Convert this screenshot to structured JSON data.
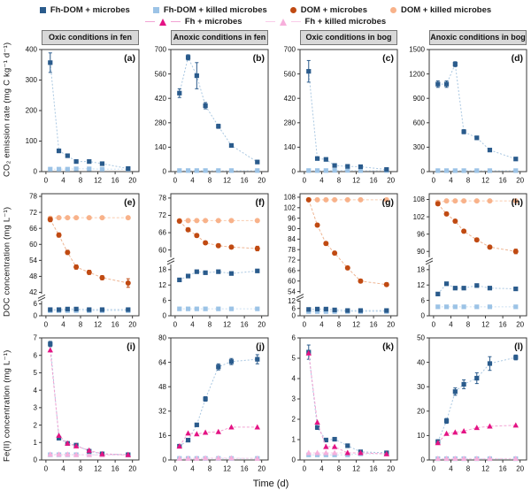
{
  "series_styles": {
    "fhdom": {
      "label": "Fh-DOM + microbes",
      "marker": "square",
      "color": "#2a5b8c",
      "line_color": "#a9c7e1",
      "dash": "2,2"
    },
    "fhdom_killed": {
      "label": "Fh-DOM + killed microbes",
      "marker": "square",
      "color": "#9cc3e6",
      "line_color": "#cadff2",
      "dash": "2,2"
    },
    "dom": {
      "label": "DOM + microbes",
      "marker": "circle",
      "color": "#c04a12",
      "line_color": "#eeb593",
      "dash": "3,2"
    },
    "dom_killed": {
      "label": "DOM + killed microbes",
      "marker": "circle",
      "color": "#f8b28a",
      "line_color": "#f9cbae",
      "dash": "3,2"
    },
    "fh": {
      "label": "Fh + microbes",
      "marker": "triangle",
      "color": "#e41384",
      "line_color": "#f2a3d3",
      "dash": "3,2",
      "legend_line": true
    },
    "fh_killed": {
      "label": "Fh + killed microbes",
      "marker": "triangle",
      "color": "#f7afdc",
      "line_color": "#f9cce9",
      "dash": "3,2",
      "legend_line": true
    }
  },
  "legend": {
    "rows": [
      [
        "fhdom",
        "fhdom_killed",
        "dom",
        "dom_killed"
      ],
      [
        "fh",
        "fh_killed"
      ]
    ]
  },
  "figure": {
    "xlabel": "Time (d)",
    "x_ticks": [
      0,
      4,
      8,
      12,
      16,
      20
    ],
    "xlim": [
      -1,
      21.5
    ],
    "column_headers": [
      "Oxic conditions in fen",
      "Anoxic conditions in fen",
      "Oxic conditions in bog",
      "Anoxic conditions in bog"
    ],
    "rows": [
      {
        "ylabel": "CO₂ emission rate (mg C kg⁻¹ d⁻¹)"
      },
      {
        "ylabel": "DOC concentration (mg L⁻¹)"
      },
      {
        "ylabel": "Fe(II) concentration (mg L⁻¹)"
      }
    ]
  },
  "chart_data": [
    {
      "id": "a",
      "type": "line",
      "row": 0,
      "col": 0,
      "x": [
        1,
        3,
        5,
        7,
        10,
        13,
        19
      ],
      "segments": [
        {
          "domain": [
            0,
            400
          ],
          "frac": [
            0,
            1
          ],
          "ticks": [
            0,
            100,
            200,
            300,
            400
          ]
        }
      ],
      "series": [
        {
          "key": "fhdom_killed",
          "values": [
            8,
            8,
            8,
            9,
            9,
            8,
            8
          ]
        },
        {
          "key": "fhdom",
          "values": [
            357,
            68,
            52,
            33,
            33,
            26,
            10
          ],
          "err": [
            32,
            6,
            5,
            4,
            4,
            3,
            3
          ]
        }
      ]
    },
    {
      "id": "b",
      "type": "line",
      "row": 0,
      "col": 1,
      "x": [
        1,
        3,
        5,
        7,
        10,
        13,
        19
      ],
      "segments": [
        {
          "domain": [
            0,
            700
          ],
          "frac": [
            0,
            1
          ],
          "ticks": [
            0,
            140,
            280,
            420,
            560,
            700
          ]
        }
      ],
      "series": [
        {
          "key": "fhdom_killed",
          "values": [
            6,
            6,
            6,
            6,
            6,
            6,
            6
          ]
        },
        {
          "key": "fhdom",
          "values": [
            450,
            655,
            550,
            378,
            260,
            150,
            55
          ],
          "err": [
            25,
            15,
            75,
            18,
            12,
            8,
            5
          ]
        }
      ]
    },
    {
      "id": "c",
      "type": "line",
      "row": 0,
      "col": 2,
      "x": [
        1,
        3,
        5,
        7,
        10,
        13,
        19
      ],
      "segments": [
        {
          "domain": [
            0,
            700
          ],
          "frac": [
            0,
            1
          ],
          "ticks": [
            0,
            140,
            280,
            420,
            560,
            700
          ]
        }
      ],
      "series": [
        {
          "key": "fhdom_killed",
          "values": [
            6,
            6,
            6,
            7,
            7,
            6,
            6
          ]
        },
        {
          "key": "fhdom",
          "values": [
            575,
            75,
            70,
            35,
            30,
            28,
            12
          ],
          "err": [
            62,
            8,
            6,
            5,
            4,
            4,
            3
          ]
        }
      ]
    },
    {
      "id": "d",
      "type": "line",
      "row": 0,
      "col": 3,
      "x": [
        1,
        3,
        5,
        7,
        10,
        13,
        19
      ],
      "segments": [
        {
          "domain": [
            0,
            1500
          ],
          "frac": [
            0,
            1
          ],
          "ticks": [
            0,
            300,
            600,
            900,
            1200,
            1500
          ]
        }
      ],
      "series": [
        {
          "key": "fhdom_killed",
          "values": [
            12,
            12,
            12,
            12,
            12,
            12,
            12
          ]
        },
        {
          "key": "fhdom",
          "values": [
            1075,
            1075,
            1320,
            490,
            415,
            265,
            155
          ],
          "err": [
            40,
            40,
            30,
            25,
            20,
            15,
            10
          ]
        }
      ]
    },
    {
      "id": "e",
      "type": "line",
      "row": 1,
      "col": 0,
      "x": [
        1,
        3,
        5,
        7,
        10,
        13,
        19
      ],
      "segments": [
        {
          "domain": [
            0,
            8
          ],
          "frac": [
            0,
            0.13
          ],
          "ticks": [
            0,
            6
          ]
        },
        {
          "domain": [
            41,
            79
          ],
          "frac": [
            0.17,
            1
          ],
          "ticks": [
            42,
            48,
            54,
            60,
            66,
            72,
            78
          ]
        }
      ],
      "series": [
        {
          "key": "dom_killed",
          "values": [
            69.8,
            70,
            70,
            70,
            70,
            70,
            70
          ]
        },
        {
          "key": "fhdom_killed",
          "values": [
            2.6,
            2.6,
            2.6,
            2.6,
            2.6,
            2.6,
            2.6
          ]
        },
        {
          "key": "dom",
          "values": [
            69.3,
            63.5,
            57,
            51.5,
            49.5,
            47.5,
            45.5
          ],
          "err": [
            0.8,
            0.8,
            0.8,
            0.8,
            0.8,
            0.8,
            1.6
          ]
        },
        {
          "key": "fhdom",
          "values": [
            3.1,
            3.1,
            3.4,
            3.4,
            3.1,
            3.1,
            3.1
          ]
        }
      ]
    },
    {
      "id": "f",
      "type": "line",
      "row": 1,
      "col": 1,
      "x": [
        1,
        3,
        5,
        7,
        10,
        13,
        19
      ],
      "segments": [
        {
          "domain": [
            0,
            20
          ],
          "frac": [
            0,
            0.42
          ],
          "ticks": [
            0,
            6,
            12,
            18
          ]
        },
        {
          "domain": [
            57.5,
            79.5
          ],
          "frac": [
            0.48,
            1
          ],
          "ticks": [
            60,
            66,
            72,
            78
          ]
        }
      ],
      "series": [
        {
          "key": "dom_killed",
          "values": [
            70.2,
            70.2,
            70.2,
            70.2,
            70.2,
            70.2,
            70.2
          ]
        },
        {
          "key": "fhdom_killed",
          "values": [
            2.7,
            2.7,
            2.7,
            2.7,
            2.7,
            2.7,
            2.7
          ]
        },
        {
          "key": "dom",
          "values": [
            70,
            67,
            65,
            62.5,
            61.5,
            61,
            60.5
          ],
          "err": [
            0.6,
            0.6,
            0.6,
            0.6,
            0.6,
            0.6,
            0.8
          ]
        },
        {
          "key": "fhdom",
          "values": [
            14,
            15.5,
            17.2,
            16.8,
            17.2,
            16.5,
            17.5
          ]
        }
      ]
    },
    {
      "id": "g",
      "type": "line",
      "row": 1,
      "col": 2,
      "x": [
        1,
        3,
        5,
        7,
        10,
        13,
        19
      ],
      "segments": [
        {
          "domain": [
            0,
            14
          ],
          "frac": [
            0,
            0.14
          ],
          "ticks": [
            0,
            6,
            12
          ]
        },
        {
          "domain": [
            52,
            110
          ],
          "frac": [
            0.17,
            1
          ],
          "ticks": [
            54,
            60,
            66,
            72,
            78,
            84,
            90,
            96,
            102,
            108
          ]
        }
      ],
      "series": [
        {
          "key": "dom_killed",
          "values": [
            106.5,
            106.5,
            106.5,
            106.5,
            106.5,
            106.5,
            106.5
          ]
        },
        {
          "key": "fhdom_killed",
          "values": [
            3.5,
            3.5,
            3.5,
            3.5,
            3.5,
            3.5,
            3.5
          ]
        },
        {
          "key": "dom",
          "values": [
            106.5,
            92,
            81.5,
            76,
            67.5,
            60,
            58
          ],
          "err": [
            0.8,
            1,
            1,
            1,
            1,
            1,
            1
          ]
        },
        {
          "key": "fhdom",
          "values": [
            5.2,
            5.5,
            5.5,
            4.8,
            4.3,
            4.3,
            4.3
          ]
        }
      ]
    },
    {
      "id": "h",
      "type": "line",
      "row": 1,
      "col": 3,
      "x": [
        1,
        3,
        5,
        7,
        10,
        13,
        19
      ],
      "segments": [
        {
          "domain": [
            0,
            20
          ],
          "frac": [
            0,
            0.42
          ],
          "ticks": [
            0,
            6,
            12,
            18
          ]
        },
        {
          "domain": [
            88,
            110
          ],
          "frac": [
            0.48,
            1
          ],
          "ticks": [
            90,
            96,
            102,
            108
          ]
        }
      ],
      "series": [
        {
          "key": "dom_killed",
          "values": [
            107,
            107.5,
            107.5,
            107.5,
            107.5,
            107.5,
            107.5
          ]
        },
        {
          "key": "fhdom_killed",
          "values": [
            3.5,
            3.5,
            3.5,
            3.5,
            3.5,
            3.5,
            3.5
          ]
        },
        {
          "key": "dom",
          "values": [
            106.5,
            103,
            100.5,
            97,
            94,
            91.5,
            90
          ],
          "err": [
            0.6,
            0.6,
            0.6,
            0.6,
            0.6,
            0.6,
            0.8
          ]
        },
        {
          "key": "fhdom",
          "values": [
            8.5,
            12.5,
            10.8,
            10.8,
            11.8,
            10.8,
            10.5
          ]
        }
      ]
    },
    {
      "id": "i",
      "type": "line",
      "row": 2,
      "col": 0,
      "x": [
        1,
        3,
        5,
        7,
        10,
        13,
        19
      ],
      "segments": [
        {
          "domain": [
            0,
            7
          ],
          "frac": [
            0,
            1
          ],
          "ticks": [
            0,
            1,
            2,
            3,
            4,
            5,
            6,
            7
          ]
        }
      ],
      "series": [
        {
          "key": "fhdom_killed",
          "values": [
            0.3,
            0.3,
            0.3,
            0.3,
            0.3,
            0.3,
            0.3
          ]
        },
        {
          "key": "fh_killed",
          "values": [
            0.32,
            0.32,
            0.32,
            0.3,
            0.3,
            0.28,
            0.28
          ]
        },
        {
          "key": "fhdom",
          "values": [
            6.65,
            1.25,
            0.95,
            0.85,
            0.5,
            0.35,
            0.3
          ],
          "err": [
            0.15,
            0.08,
            0.05,
            0.05,
            0.04,
            0.03,
            0.03
          ]
        },
        {
          "key": "fh",
          "values": [
            6.3,
            1.4,
            0.95,
            0.8,
            0.55,
            0.35,
            0.3
          ]
        }
      ]
    },
    {
      "id": "j",
      "type": "line",
      "row": 2,
      "col": 1,
      "x": [
        1,
        3,
        5,
        7,
        10,
        13,
        19
      ],
      "segments": [
        {
          "domain": [
            0,
            80
          ],
          "frac": [
            0,
            1
          ],
          "ticks": [
            0,
            16,
            32,
            48,
            64,
            80
          ]
        }
      ],
      "series": [
        {
          "key": "fhdom_killed",
          "values": [
            1,
            1,
            1,
            1,
            1,
            1,
            1
          ]
        },
        {
          "key": "fh_killed",
          "values": [
            1,
            1,
            1,
            1.2,
            1.2,
            1.2,
            1
          ]
        },
        {
          "key": "fhdom",
          "values": [
            9,
            13,
            23,
            40,
            61,
            64.5,
            66
          ],
          "err": [
            0.8,
            0.8,
            1,
            1.5,
            2,
            2,
            3
          ]
        },
        {
          "key": "fh",
          "values": [
            9,
            17.5,
            17,
            18,
            18.5,
            21.5,
            21.5
          ]
        }
      ]
    },
    {
      "id": "k",
      "type": "line",
      "row": 2,
      "col": 2,
      "x": [
        1,
        3,
        5,
        7,
        10,
        13,
        19
      ],
      "segments": [
        {
          "domain": [
            0,
            6
          ],
          "frac": [
            0,
            1
          ],
          "ticks": [
            0,
            1,
            2,
            3,
            4,
            5,
            6
          ]
        }
      ],
      "series": [
        {
          "key": "fhdom_killed",
          "values": [
            0.25,
            0.25,
            0.25,
            0.25,
            0.25,
            0.3,
            0.3
          ]
        },
        {
          "key": "fh_killed",
          "values": [
            0.35,
            0.35,
            0.35,
            0.35,
            0.35,
            0.35,
            0.3
          ]
        },
        {
          "key": "fhdom",
          "values": [
            5.3,
            1.6,
            0.98,
            1.02,
            0.7,
            0.4,
            0.35
          ],
          "err": [
            0.35,
            0.1,
            0.08,
            0.06,
            0.05,
            0.04,
            0.04
          ]
        },
        {
          "key": "fh",
          "values": [
            5.25,
            1.85,
            0.65,
            0.65,
            0.35,
            0.35,
            0.3
          ]
        }
      ]
    },
    {
      "id": "l",
      "type": "line",
      "row": 2,
      "col": 3,
      "x": [
        1,
        3,
        5,
        7,
        10,
        13,
        19
      ],
      "segments": [
        {
          "domain": [
            0,
            50
          ],
          "frac": [
            0,
            1
          ],
          "ticks": [
            0,
            10,
            20,
            30,
            40,
            50
          ]
        }
      ],
      "series": [
        {
          "key": "fhdom_killed",
          "values": [
            0.5,
            0.5,
            0.5,
            0.5,
            0.5,
            0.5,
            0.5
          ]
        },
        {
          "key": "fh_killed",
          "values": [
            0.6,
            0.6,
            0.6,
            0.6,
            0.6,
            0.6,
            0.6
          ]
        },
        {
          "key": "fhdom",
          "values": [
            7.5,
            16,
            28,
            31,
            33.5,
            39.5,
            42
          ],
          "err": [
            0.8,
            1,
            1.5,
            1.8,
            2.2,
            2.8,
            1
          ]
        },
        {
          "key": "fh",
          "values": [
            7,
            10.8,
            11.3,
            11.8,
            13.2,
            13.8,
            14.2
          ]
        }
      ]
    }
  ]
}
